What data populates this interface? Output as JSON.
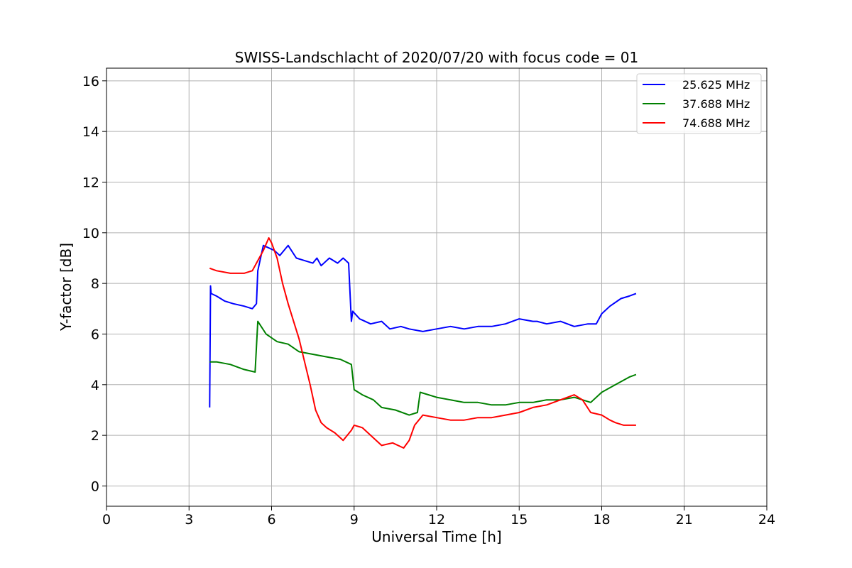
{
  "chart_data": {
    "type": "line",
    "title": "SWISS-Landschlacht of 2020/07/20 with focus code = 01",
    "xlabel": "Universal Time [h]",
    "ylabel": "Y-factor [dB]",
    "xlim": [
      0,
      24
    ],
    "ylim": [
      -0.8,
      16.5
    ],
    "xticks": [
      0,
      3,
      6,
      9,
      12,
      15,
      18,
      21,
      24
    ],
    "yticks": [
      0,
      2,
      4,
      6,
      8,
      10,
      12,
      14,
      16
    ],
    "grid": true,
    "legend": "top-right",
    "series": [
      {
        "name": "25.625 MHz",
        "color": "#0000ff",
        "x": [
          3.75,
          3.78,
          3.8,
          4.0,
          4.3,
          4.6,
          5.0,
          5.3,
          5.45,
          5.5,
          5.7,
          5.9,
          6.1,
          6.3,
          6.6,
          6.9,
          7.2,
          7.5,
          7.65,
          7.8,
          8.1,
          8.4,
          8.6,
          8.8,
          8.9,
          8.95,
          9.2,
          9.6,
          10.0,
          10.3,
          10.7,
          11.0,
          11.5,
          12.0,
          12.5,
          13.0,
          13.5,
          14.0,
          14.5,
          15.0,
          15.5,
          15.65,
          16.0,
          16.5,
          17.0,
          17.5,
          17.8,
          18.0,
          18.3,
          18.7,
          19.0,
          19.25
        ],
        "y": [
          3.1,
          7.9,
          7.6,
          7.5,
          7.3,
          7.2,
          7.1,
          7.0,
          7.2,
          8.5,
          9.5,
          9.4,
          9.3,
          9.1,
          9.5,
          9.0,
          8.9,
          8.8,
          9.0,
          8.7,
          9.0,
          8.8,
          9.0,
          8.8,
          6.5,
          6.9,
          6.6,
          6.4,
          6.5,
          6.2,
          6.3,
          6.2,
          6.1,
          6.2,
          6.3,
          6.2,
          6.3,
          6.3,
          6.4,
          6.6,
          6.5,
          6.5,
          6.4,
          6.5,
          6.3,
          6.4,
          6.4,
          6.8,
          7.1,
          7.4,
          7.5,
          7.6
        ]
      },
      {
        "name": "37.688 MHz",
        "color": "#008000",
        "x": [
          3.75,
          4.0,
          4.5,
          5.0,
          5.4,
          5.5,
          5.8,
          6.2,
          6.6,
          7.0,
          7.5,
          8.0,
          8.5,
          8.9,
          9.0,
          9.3,
          9.7,
          10.0,
          10.5,
          11.0,
          11.3,
          11.4,
          12.0,
          12.5,
          13.0,
          13.5,
          14.0,
          14.5,
          15.0,
          15.5,
          16.0,
          16.5,
          17.0,
          17.3,
          17.6,
          18.0,
          18.5,
          19.0,
          19.25
        ],
        "y": [
          4.9,
          4.9,
          4.8,
          4.6,
          4.5,
          6.5,
          6.0,
          5.7,
          5.6,
          5.3,
          5.2,
          5.1,
          5.0,
          4.8,
          3.8,
          3.6,
          3.4,
          3.1,
          3.0,
          2.8,
          2.9,
          3.7,
          3.5,
          3.4,
          3.3,
          3.3,
          3.2,
          3.2,
          3.3,
          3.3,
          3.4,
          3.4,
          3.5,
          3.4,
          3.3,
          3.7,
          4.0,
          4.3,
          4.4
        ]
      },
      {
        "name": "74.688 MHz",
        "color": "#ff0000",
        "x": [
          3.75,
          4.0,
          4.5,
          5.0,
          5.3,
          5.5,
          5.7,
          5.9,
          6.0,
          6.2,
          6.4,
          6.6,
          6.8,
          7.0,
          7.2,
          7.4,
          7.6,
          7.8,
          8.0,
          8.3,
          8.6,
          8.9,
          9.0,
          9.3,
          9.6,
          10.0,
          10.4,
          10.8,
          11.0,
          11.2,
          11.5,
          12.0,
          12.5,
          13.0,
          13.5,
          14.0,
          14.5,
          15.0,
          15.5,
          16.0,
          16.5,
          17.0,
          17.3,
          17.6,
          18.0,
          18.3,
          18.5,
          18.8,
          19.0,
          19.25
        ],
        "y": [
          8.6,
          8.5,
          8.4,
          8.4,
          8.5,
          8.9,
          9.3,
          9.8,
          9.6,
          9.0,
          8.0,
          7.2,
          6.5,
          5.8,
          4.9,
          4.0,
          3.0,
          2.5,
          2.3,
          2.1,
          1.8,
          2.2,
          2.4,
          2.3,
          2.0,
          1.6,
          1.7,
          1.5,
          1.8,
          2.4,
          2.8,
          2.7,
          2.6,
          2.6,
          2.7,
          2.7,
          2.8,
          2.9,
          3.1,
          3.2,
          3.4,
          3.6,
          3.4,
          2.9,
          2.8,
          2.6,
          2.5,
          2.4,
          2.4,
          2.4
        ]
      }
    ]
  }
}
